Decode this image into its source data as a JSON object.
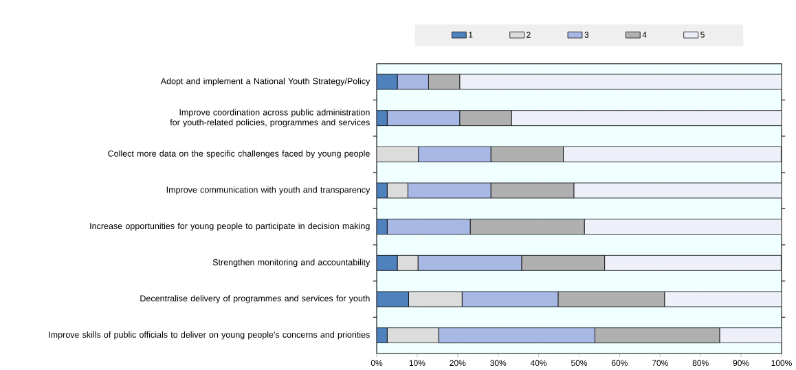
{
  "chart_data": {
    "type": "bar",
    "orientation": "horizontal",
    "stacked": true,
    "categories": [
      "Adopt and implement a National Youth Strategy/Policy",
      "Improve coordination across public administration for youth-related policies, programmes and services",
      "Collect more data on the specific challenges faced by young people",
      "Improve communication with youth and transparency",
      "Increase opportunities for young people to participate in decision making",
      "Strengthen monitoring and accountability",
      "Decentralise delivery of programmes and services for youth",
      "Improve skills of public officials to deliver on young people's concerns and priorities"
    ],
    "series": [
      {
        "name": "1",
        "color": "#4f81bd",
        "values": [
          5.1,
          2.6,
          0,
          2.6,
          2.6,
          5.1,
          7.9,
          2.6
        ]
      },
      {
        "name": "2",
        "color": "#dcdcdc",
        "values": [
          0,
          0,
          10.3,
          5.1,
          0,
          5.1,
          13.2,
          12.7
        ]
      },
      {
        "name": "3",
        "color": "#a6b8e3",
        "values": [
          7.7,
          17.9,
          17.9,
          20.5,
          20.5,
          25.6,
          23.7,
          38.6
        ]
      },
      {
        "name": "4",
        "color": "#b0b0b0",
        "values": [
          7.7,
          12.8,
          17.9,
          20.5,
          28.2,
          20.5,
          26.3,
          30.8
        ]
      },
      {
        "name": "5",
        "color": "#edf0f8",
        "values": [
          79.5,
          66.7,
          53.8,
          51.3,
          48.7,
          43.6,
          28.9,
          15.3
        ]
      }
    ],
    "xlim": [
      0,
      100
    ],
    "xticks": [
      {
        "value": 0,
        "label": "0%"
      },
      {
        "value": 10,
        "label": "10%"
      },
      {
        "value": 20,
        "label": "20%"
      },
      {
        "value": 30,
        "label": "30%"
      },
      {
        "value": 40,
        "label": "40%"
      },
      {
        "value": 50,
        "label": "50%"
      },
      {
        "value": 60,
        "label": "60%"
      },
      {
        "value": 70,
        "label": "70%"
      },
      {
        "value": 80,
        "label": "80%"
      },
      {
        "value": 90,
        "label": "90%"
      },
      {
        "value": 100,
        "label": "100%"
      }
    ],
    "grid": "x",
    "legend": "top"
  }
}
